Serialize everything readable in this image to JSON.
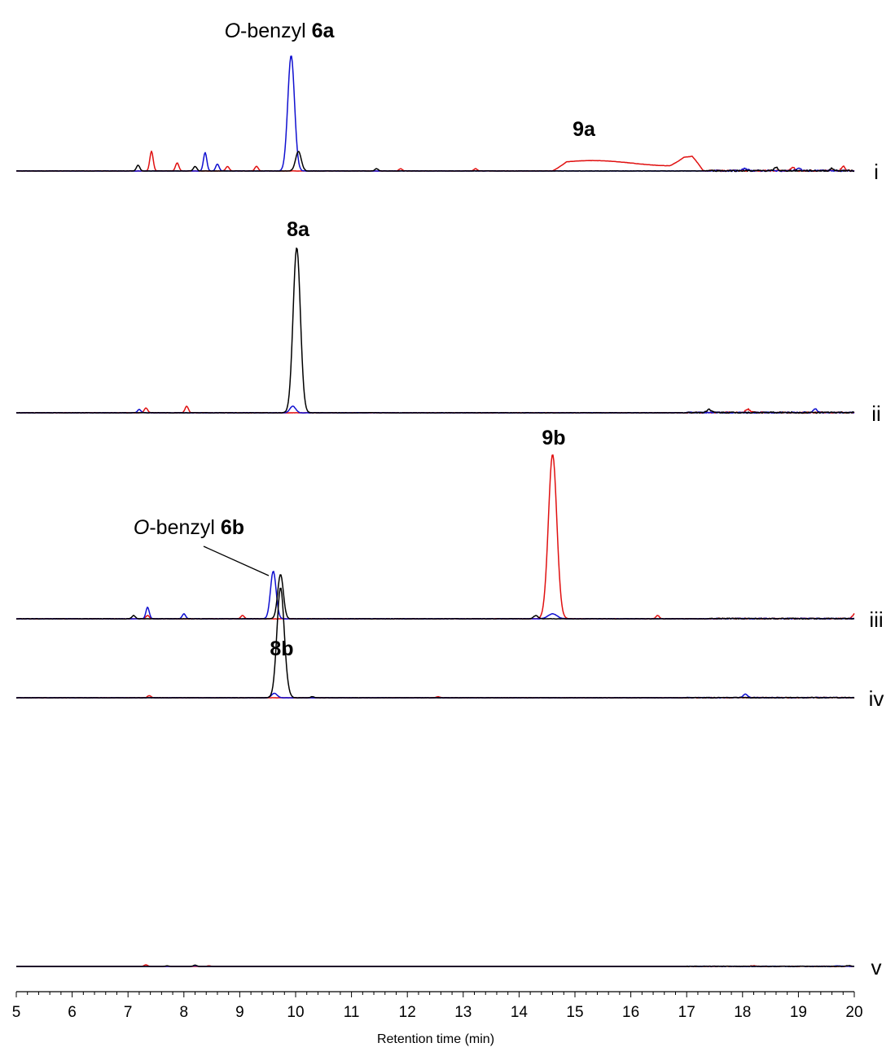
{
  "chart_data": {
    "type": "line",
    "xlabel": "Retention time (min)",
    "xlim": [
      5,
      20
    ],
    "x_ticks": [
      "5",
      "6",
      "7",
      "8",
      "9",
      "10",
      "11",
      "12",
      "13",
      "14",
      "15",
      "16",
      "17",
      "18",
      "19",
      "20"
    ],
    "colors": {
      "red": "#e01010",
      "blue": "#1010d0",
      "black": "#000000"
    },
    "traces": [
      {
        "label": "i",
        "annotations": [
          {
            "italic": "O",
            "text": "-benzyl ",
            "bold": "6a",
            "x": 9.92
          },
          {
            "bold": "9a",
            "x": 15.0
          }
        ],
        "series": [
          {
            "name": "",
            "color": "red",
            "peaks": [
              [
                7.42,
                0.17,
                0.03
              ],
              [
                7.88,
                0.07,
                0.03
              ],
              [
                8.78,
                0.04,
                0.03
              ],
              [
                9.3,
                0.04,
                0.03
              ],
              [
                11.88,
                0.02,
                0.03
              ],
              [
                13.22,
                0.02,
                0.03
              ],
              [
                18.9,
                0.03,
                0.03
              ],
              [
                19.8,
                0.04,
                0.03
              ]
            ],
            "broad": [
              [
                14.6,
                17.3,
                0.09
              ],
              [
                16.7,
                17.3,
                0.08
              ]
            ],
            "noise_from": 17.4,
            "noise_amp": 0.012
          },
          {
            "name": "",
            "color": "blue",
            "peaks": [
              [
                8.38,
                0.16,
                0.03
              ],
              [
                8.6,
                0.06,
                0.03
              ],
              [
                9.92,
                1.0,
                0.06
              ],
              [
                18.05,
                0.02,
                0.04
              ],
              [
                19.0,
                0.02,
                0.04
              ]
            ],
            "noise_from": 17.5,
            "noise_amp": 0.012
          },
          {
            "name": "",
            "color": "black",
            "peaks": [
              [
                7.18,
                0.05,
                0.03
              ],
              [
                8.2,
                0.04,
                0.03
              ],
              [
                10.05,
                0.17,
                0.05
              ],
              [
                11.45,
                0.02,
                0.03
              ],
              [
                18.6,
                0.03,
                0.03
              ],
              [
                19.6,
                0.02,
                0.03
              ]
            ],
            "noise_from": 17.3,
            "noise_amp": 0.012
          }
        ]
      },
      {
        "label": "ii",
        "annotations": [
          {
            "bold": "8a",
            "x": 10.02
          }
        ],
        "series": [
          {
            "name": "",
            "color": "red",
            "peaks": [
              [
                7.32,
                0.03,
                0.03
              ],
              [
                8.05,
                0.04,
                0.03
              ],
              [
                18.1,
                0.02,
                0.04
              ]
            ],
            "noise_from": 17.0,
            "noise_amp": 0.008
          },
          {
            "name": "",
            "color": "blue",
            "peaks": [
              [
                7.2,
                0.02,
                0.03
              ],
              [
                9.95,
                0.04,
                0.05
              ],
              [
                19.3,
                0.02,
                0.04
              ]
            ],
            "noise_from": 17.0,
            "noise_amp": 0.008
          },
          {
            "name": "",
            "color": "black",
            "peaks": [
              [
                10.02,
                1.0,
                0.065
              ],
              [
                17.4,
                0.02,
                0.04
              ]
            ],
            "noise_from": 17.0,
            "noise_amp": 0.008
          }
        ]
      },
      {
        "label": "iii",
        "annotations": [
          {
            "bold": "9b",
            "x": 14.6
          },
          {
            "italic": "O",
            "text": "-benzyl ",
            "bold": "6b",
            "x": 9.6
          }
        ],
        "series": [
          {
            "name": "",
            "color": "red",
            "peaks": [
              [
                7.35,
                0.02,
                0.03
              ],
              [
                9.05,
                0.02,
                0.03
              ],
              [
                14.6,
                1.0,
                0.075
              ],
              [
                16.48,
                0.02,
                0.03
              ],
              [
                20.0,
                0.03,
                0.03
              ]
            ],
            "noise_from": 17.4,
            "noise_amp": 0.006
          },
          {
            "name": "",
            "color": "blue",
            "peaks": [
              [
                7.35,
                0.07,
                0.03
              ],
              [
                8.0,
                0.03,
                0.03
              ],
              [
                9.6,
                0.29,
                0.05
              ],
              [
                14.6,
                0.03,
                0.08
              ]
            ],
            "noise_from": 17.5,
            "noise_amp": 0.006
          },
          {
            "name": "",
            "color": "black",
            "peaks": [
              [
                7.1,
                0.02,
                0.03
              ],
              [
                9.73,
                0.27,
                0.05
              ],
              [
                14.3,
                0.02,
                0.04
              ]
            ],
            "noise_from": 17.4,
            "noise_amp": 0.006
          }
        ]
      },
      {
        "label": "iv",
        "annotations": [
          {
            "bold": "8b",
            "x": 9.73
          }
        ],
        "series": [
          {
            "name": "",
            "color": "red",
            "peaks": [
              [
                7.38,
                0.02,
                0.03
              ],
              [
                12.55,
                0.01,
                0.03
              ]
            ],
            "noise_from": 17.0,
            "noise_amp": 0.006
          },
          {
            "name": "",
            "color": "blue",
            "peaks": [
              [
                9.62,
                0.04,
                0.05
              ],
              [
                18.05,
                0.03,
                0.04
              ]
            ],
            "noise_from": 17.0,
            "noise_amp": 0.006
          },
          {
            "name": "",
            "color": "black",
            "peaks": [
              [
                9.73,
                1.0,
                0.065
              ],
              [
                9.85,
                0.03,
                0.05
              ],
              [
                10.3,
                0.01,
                0.03
              ]
            ],
            "noise_from": 17.0,
            "noise_amp": 0.006
          }
        ]
      },
      {
        "label": "v",
        "annotations": [],
        "series": [
          {
            "name": "",
            "color": "red",
            "peaks": [
              [
                7.32,
                0.05,
                0.03
              ],
              [
                8.45,
                0.02,
                0.03
              ],
              [
                18.2,
                0.02,
                0.04
              ]
            ],
            "noise_from": 17.0,
            "noise_amp": 0.016
          },
          {
            "name": "",
            "color": "blue",
            "peaks": [
              [
                8.2,
                0.02,
                0.03
              ],
              [
                19.7,
                0.02,
                0.04
              ]
            ],
            "noise_from": 17.0,
            "noise_amp": 0.016
          },
          {
            "name": "",
            "color": "black",
            "peaks": [
              [
                8.2,
                0.04,
                0.03
              ],
              [
                7.7,
                0.02,
                0.03
              ],
              [
                19.9,
                0.02,
                0.04
              ]
            ],
            "noise_from": 17.0,
            "noise_amp": 0.016
          }
        ]
      }
    ]
  }
}
